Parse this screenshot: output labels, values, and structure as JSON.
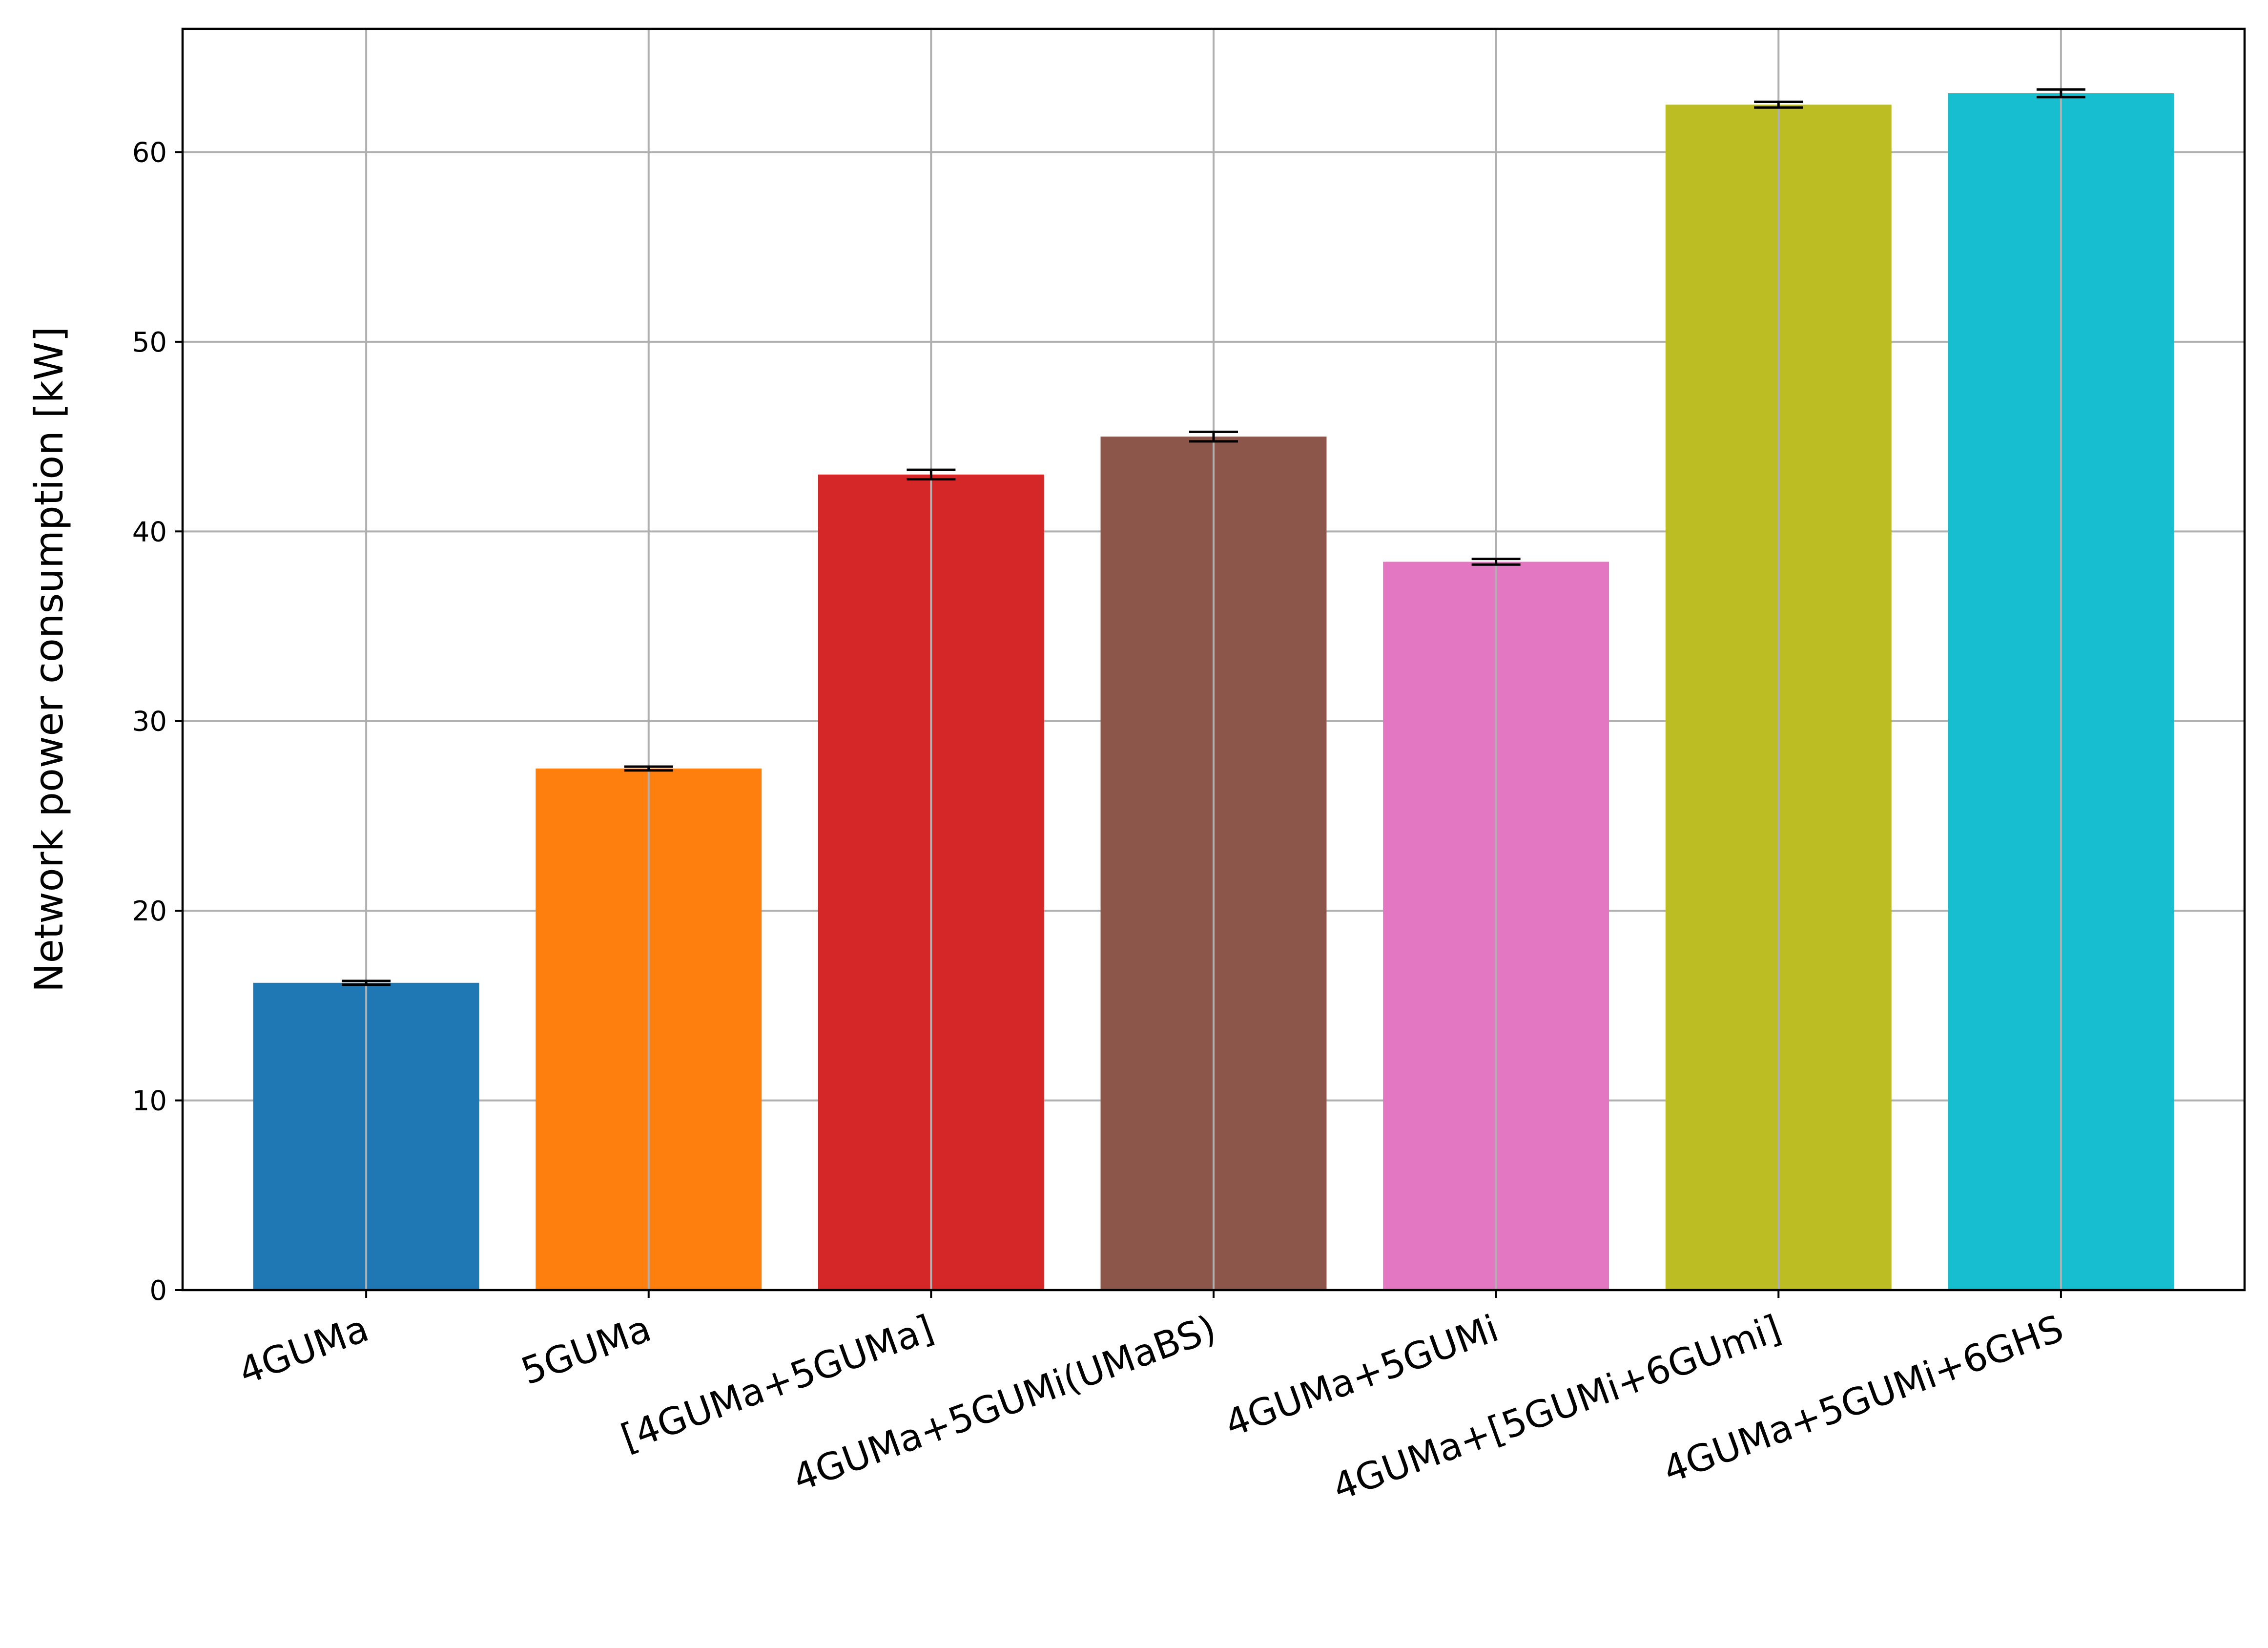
{
  "chart_data": {
    "type": "bar",
    "title": "",
    "xlabel": "",
    "ylabel": "Network power consumption [kW]",
    "ylim": [
      0,
      66.5
    ],
    "yticks": [
      0,
      10,
      20,
      30,
      40,
      50,
      60
    ],
    "ytick_labels": [
      "0",
      "10",
      "20",
      "30",
      "40",
      "50",
      "60"
    ],
    "grid": true,
    "categories": [
      "4GUMa",
      "5GUMa",
      "[4GUMa+5GUMa]",
      "4GUMa+5GUMi(UMaBS)",
      "4GUMa+5GUMi",
      "4GUMa+[5GUMi+6GUmi]",
      "4GUMa+5GUMi+6GHS"
    ],
    "values": [
      16.2,
      27.5,
      43.0,
      45.0,
      38.4,
      62.5,
      63.1
    ],
    "errors": [
      0.1,
      0.1,
      0.25,
      0.25,
      0.15,
      0.15,
      0.2
    ],
    "colors": [
      "#1f77b4",
      "#ff7f0e",
      "#d62728",
      "#8c564b",
      "#e377c2",
      "#bcbd22",
      "#17becf"
    ]
  }
}
